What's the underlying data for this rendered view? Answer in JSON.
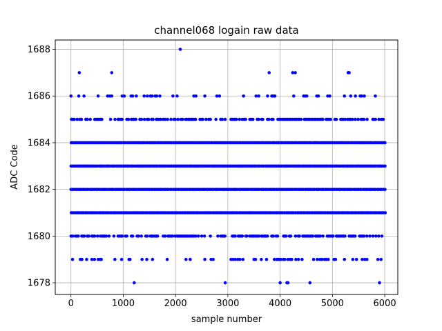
{
  "chart_data": {
    "type": "scatter",
    "title": "channel068 logain raw data",
    "xlabel": "sample number",
    "ylabel": "ADC Code",
    "xlim": [
      -300,
      6250
    ],
    "ylim": [
      1677.5,
      1688.4
    ],
    "xticks": [
      0,
      1000,
      2000,
      3000,
      4000,
      5000,
      6000
    ],
    "yticks": [
      1678,
      1680,
      1682,
      1684,
      1686,
      1688
    ],
    "grid": true,
    "marker_color": "#0000ff",
    "n_samples": 6000,
    "dense_levels": [
      1681,
      1682,
      1683,
      1684
    ],
    "semi_dense_levels": [
      {
        "y": 1680,
        "density": 0.65
      },
      {
        "y": 1685,
        "density": 0.7
      }
    ],
    "sparse_points": [
      {
        "y": 1688,
        "x": [
          2090
        ]
      },
      {
        "y": 1687,
        "x": [
          160,
          780,
          3790,
          4240,
          4290,
          5300,
          5320
        ]
      },
      {
        "y": 1678,
        "x": [
          1210,
          2950,
          4000,
          4130,
          4150,
          4570,
          5900
        ]
      },
      {
        "y": 1686,
        "x": [
          0,
          150,
          250,
          520,
          700,
          740,
          780,
          980,
          1020,
          1150,
          1180,
          1250,
          1400,
          1460,
          1520,
          1550,
          1610,
          1640,
          1700,
          1950,
          2030,
          2350,
          2390,
          2560,
          2790,
          2840,
          3300,
          3540,
          3590,
          3760,
          3840,
          3860,
          3880,
          3900,
          4260,
          4450,
          4480,
          4510,
          4700,
          4730,
          4910,
          4950,
          5230,
          5350,
          5440,
          5530,
          5560,
          5610,
          5820
        ]
      },
      {
        "y": 1679,
        "x": [
          30,
          180,
          210,
          300,
          400,
          450,
          520,
          560,
          580,
          840,
          970,
          1110,
          1130,
          1360,
          1450,
          1560,
          1840,
          2200,
          2280,
          2560,
          2680,
          2720,
          3060,
          3100,
          3140,
          3190,
          3230,
          3290,
          3500,
          3530,
          3640,
          3740,
          3890,
          3940,
          3960,
          3980,
          4010,
          4060,
          4090,
          4150,
          4190,
          4220,
          4300,
          4350,
          4420,
          4640,
          4710,
          4760,
          4800,
          4850,
          4880,
          4920,
          5030,
          5060,
          5230,
          5390,
          5460,
          5570,
          5620,
          5660,
          5870,
          5930
        ]
      }
    ]
  }
}
